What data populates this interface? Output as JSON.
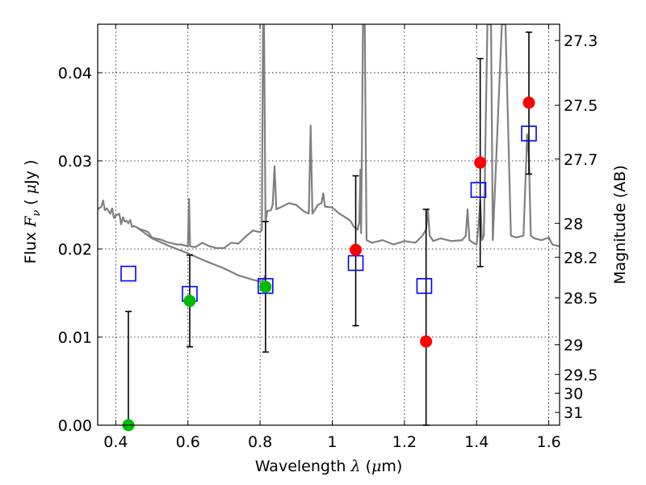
{
  "chart_data": {
    "type": "scatter",
    "xlabel": {
      "pre": "Wavelength ",
      "var": "λ",
      "post": " (",
      "mu": "μ",
      "unit": "m)"
    },
    "ylabel": {
      "pre": "Flux ",
      "var": "F",
      "sub": "ν",
      "post": " ( ",
      "mu": "μ",
      "unit": "Jy )"
    },
    "y2label": "Magnitude (AB)",
    "xlim": [
      0.35,
      1.63
    ],
    "ylim": [
      0.0,
      0.0455
    ],
    "grid": true,
    "x_ticks": [
      {
        "v": 0.4,
        "label": "0.4"
      },
      {
        "v": 0.6,
        "label": "0.6"
      },
      {
        "v": 0.8,
        "label": "0.8"
      },
      {
        "v": 1.0,
        "label": "1"
      },
      {
        "v": 1.2,
        "label": "1.2"
      },
      {
        "v": 1.4,
        "label": "1.4"
      },
      {
        "v": 1.6,
        "label": "1.6"
      }
    ],
    "y_ticks": [
      {
        "v": 0.0,
        "label": "0.00"
      },
      {
        "v": 0.01,
        "label": "0.01"
      },
      {
        "v": 0.02,
        "label": "0.02"
      },
      {
        "v": 0.03,
        "label": "0.03"
      },
      {
        "v": 0.04,
        "label": "0.04"
      }
    ],
    "y2_ticks": [
      {
        "mag": 27.3,
        "label": "27.3"
      },
      {
        "mag": 27.5,
        "label": "27.5"
      },
      {
        "mag": 27.7,
        "label": "27.7"
      },
      {
        "mag": 28.0,
        "label": "28"
      },
      {
        "mag": 28.2,
        "label": "28.2"
      },
      {
        "mag": 28.5,
        "label": "28.5"
      },
      {
        "mag": 29.0,
        "label": "29"
      },
      {
        "mag": 29.5,
        "label": "29.5"
      },
      {
        "mag": 30.0,
        "label": "30"
      },
      {
        "mag": 31.0,
        "label": "31"
      }
    ],
    "series": [
      {
        "kind": "spectrum",
        "color": "#808080",
        "points": [
          [
            0.35,
            0.0245
          ],
          [
            0.36,
            0.0248
          ],
          [
            0.365,
            0.0255
          ],
          [
            0.37,
            0.0244
          ],
          [
            0.375,
            0.0246
          ],
          [
            0.38,
            0.0243
          ],
          [
            0.385,
            0.024
          ],
          [
            0.39,
            0.0246
          ],
          [
            0.395,
            0.0235
          ],
          [
            0.4,
            0.0238
          ],
          [
            0.41,
            0.024
          ],
          [
            0.415,
            0.0228
          ],
          [
            0.42,
            0.0236
          ],
          [
            0.425,
            0.0231
          ],
          [
            0.43,
            0.0232
          ],
          [
            0.435,
            0.0229
          ],
          [
            0.44,
            0.0233
          ],
          [
            0.445,
            0.0225
          ],
          [
            0.45,
            0.0226
          ],
          [
            0.46,
            0.0224
          ],
          [
            0.47,
            0.0222
          ],
          [
            0.48,
            0.0221
          ],
          [
            0.49,
            0.0219
          ],
          [
            0.5,
            0.0213
          ],
          [
            0.51,
            0.0212
          ],
          [
            0.52,
            0.0211
          ],
          [
            0.53,
            0.021
          ],
          [
            0.54,
            0.0208
          ],
          [
            0.55,
            0.0207
          ],
          [
            0.56,
            0.0206
          ],
          [
            0.57,
            0.0205
          ],
          [
            0.58,
            0.0205
          ],
          [
            0.59,
            0.0204
          ],
          [
            0.6,
            0.0203
          ],
          [
            0.603,
            0.0257
          ],
          [
            0.606,
            0.0203
          ],
          [
            0.62,
            0.0202
          ],
          [
            0.64,
            0.0207
          ],
          [
            0.66,
            0.0203
          ],
          [
            0.68,
            0.0201
          ],
          [
            0.7,
            0.0201
          ],
          [
            0.72,
            0.0207
          ],
          [
            0.74,
            0.0206
          ],
          [
            0.76,
            0.0214
          ],
          [
            0.78,
            0.0221
          ],
          [
            0.8,
            0.0219
          ],
          [
            0.805,
            0.0222
          ],
          [
            0.808,
            0.0455
          ],
          [
            0.811,
            0.0455
          ],
          [
            0.815,
            0.023
          ],
          [
            0.82,
            0.0243
          ],
          [
            0.83,
            0.0244
          ],
          [
            0.835,
            0.025
          ],
          [
            0.84,
            0.0294
          ],
          [
            0.845,
            0.0245
          ],
          [
            0.86,
            0.0248
          ],
          [
            0.88,
            0.0252
          ],
          [
            0.9,
            0.025
          ],
          [
            0.92,
            0.0243
          ],
          [
            0.935,
            0.024
          ],
          [
            0.94,
            0.034
          ],
          [
            0.945,
            0.024
          ],
          [
            0.96,
            0.025
          ],
          [
            0.97,
            0.0252
          ],
          [
            0.975,
            0.0263
          ],
          [
            0.98,
            0.0248
          ],
          [
            1.0,
            0.0247
          ],
          [
            1.02,
            0.024
          ],
          [
            1.04,
            0.0235
          ],
          [
            1.05,
            0.0232
          ],
          [
            1.06,
            0.0225
          ],
          [
            1.07,
            0.0222
          ],
          [
            1.075,
            0.023
          ],
          [
            1.078,
            0.029
          ],
          [
            1.08,
            0.0218
          ],
          [
            1.085,
            0.0455
          ],
          [
            1.09,
            0.0455
          ],
          [
            1.095,
            0.021
          ],
          [
            1.11,
            0.0207
          ],
          [
            1.14,
            0.021
          ],
          [
            1.17,
            0.0205
          ],
          [
            1.2,
            0.0209
          ],
          [
            1.23,
            0.0207
          ],
          [
            1.25,
            0.0215
          ],
          [
            1.26,
            0.0222
          ],
          [
            1.265,
            0.0245
          ],
          [
            1.27,
            0.0215
          ],
          [
            1.28,
            0.0209
          ],
          [
            1.3,
            0.0212
          ],
          [
            1.33,
            0.0209
          ],
          [
            1.36,
            0.021
          ],
          [
            1.37,
            0.0215
          ],
          [
            1.375,
            0.0245
          ],
          [
            1.38,
            0.021
          ],
          [
            1.39,
            0.0207
          ],
          [
            1.4,
            0.0205
          ],
          [
            1.405,
            0.0225
          ],
          [
            1.41,
            0.0255
          ],
          [
            1.415,
            0.021
          ],
          [
            1.42,
            0.0215
          ],
          [
            1.43,
            0.0455
          ],
          [
            1.44,
            0.0455
          ],
          [
            1.445,
            0.021
          ],
          [
            1.47,
            0.0455
          ],
          [
            1.48,
            0.0455
          ],
          [
            1.495,
            0.0215
          ],
          [
            1.51,
            0.0213
          ],
          [
            1.52,
            0.0214
          ],
          [
            1.53,
            0.0215
          ],
          [
            1.54,
            0.033
          ],
          [
            1.545,
            0.0305
          ],
          [
            1.55,
            0.0215
          ],
          [
            1.56,
            0.0212
          ],
          [
            1.58,
            0.021
          ],
          [
            1.6,
            0.0213
          ],
          [
            1.61,
            0.0205
          ],
          [
            1.63,
            0.0203
          ]
        ]
      },
      {
        "kind": "spectrum",
        "color": "#808080",
        "points": [
          [
            0.46,
            0.0224
          ],
          [
            0.5,
            0.0212
          ],
          [
            0.55,
            0.0203
          ],
          [
            0.6,
            0.0195
          ],
          [
            0.65,
            0.0186
          ],
          [
            0.7,
            0.0178
          ],
          [
            0.74,
            0.017
          ],
          [
            0.78,
            0.0165
          ],
          [
            0.8,
            0.0163
          ],
          [
            0.81,
            0.0165
          ],
          [
            0.815,
            0.017
          ]
        ]
      },
      {
        "kind": "model",
        "color": "#0000ff",
        "marker": "square",
        "points": [
          [
            0.435,
            0.0172
          ],
          [
            0.605,
            0.0149
          ],
          [
            0.815,
            0.0158
          ],
          [
            1.065,
            0.0184
          ],
          [
            1.255,
            0.0158
          ],
          [
            1.405,
            0.0267
          ],
          [
            1.545,
            0.0331
          ]
        ]
      },
      {
        "kind": "observed",
        "color": "#ff0000",
        "marker": "circle",
        "points": [
          [
            1.065,
            0.0199,
            0.0113,
            0.0283
          ],
          [
            1.26,
            0.0095,
            0.0,
            0.0245
          ],
          [
            1.41,
            0.0298,
            0.018,
            0.0416
          ],
          [
            1.545,
            0.0366,
            0.0285,
            0.0446
          ]
        ]
      },
      {
        "kind": "observed",
        "color": "#00bb00",
        "marker": "circle",
        "points": [
          [
            0.435,
            0.0,
            0.0,
            0.0129
          ],
          [
            0.605,
            0.0141,
            0.0089,
            0.0193
          ],
          [
            0.815,
            0.0157,
            0.0083,
            0.0231
          ]
        ]
      }
    ]
  }
}
